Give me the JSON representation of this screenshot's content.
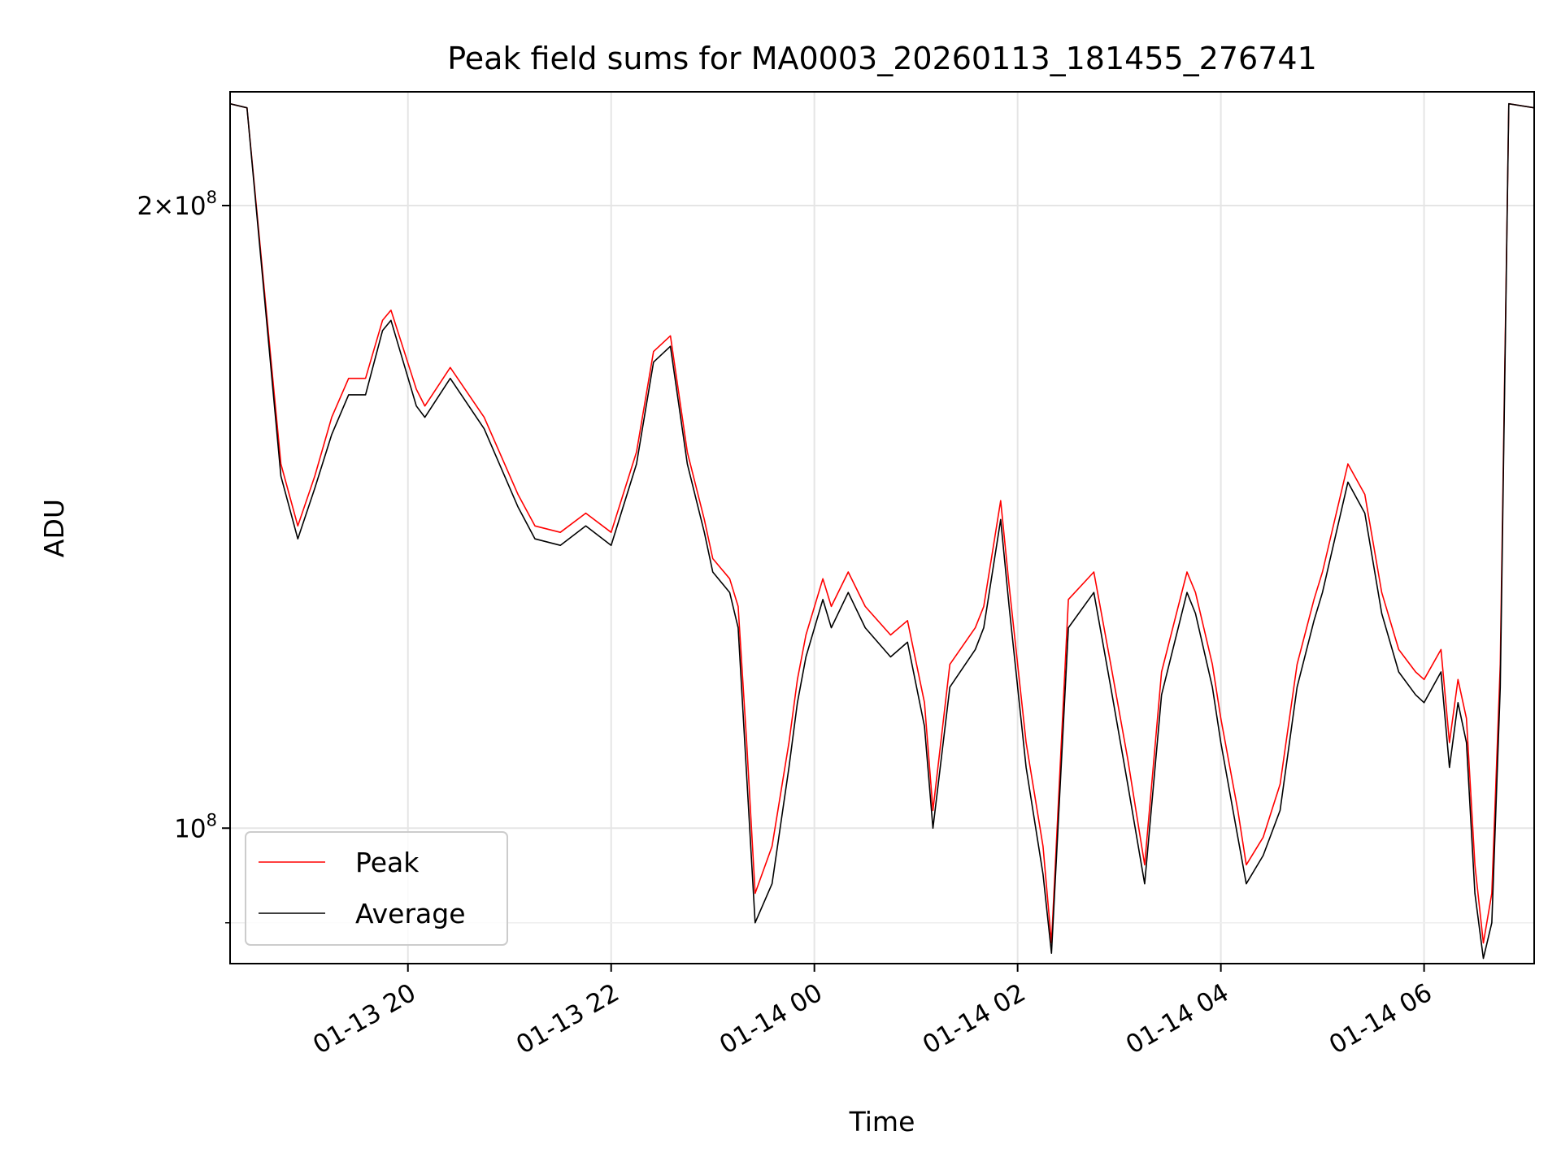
{
  "chart_data": {
    "type": "line",
    "title": "Peak field sums for MA0003_20260113_181455_276741",
    "xlabel": "Time",
    "ylabel": "ADU",
    "y_scale": "log",
    "grid": true,
    "legend_position": "lower-left",
    "xlim": [
      "2026-01-13 18:15",
      "2026-01-14 07:05"
    ],
    "ylim": [
      86000000,
      227000000
    ],
    "x_tick_labels": [
      "01-13 20",
      "01-13 22",
      "01-14 00",
      "01-14 02",
      "01-14 04",
      "01-14 06"
    ],
    "x_ticks": [
      "2026-01-13 20:00",
      "2026-01-13 22:00",
      "2026-01-14 00:00",
      "2026-01-14 02:00",
      "2026-01-14 04:00",
      "2026-01-14 06:00"
    ],
    "y_tick_labels": [
      {
        "value": 200000000,
        "base": "2×10",
        "exp": "8"
      },
      {
        "value": 100000000,
        "base": "10",
        "exp": "8"
      }
    ],
    "y_minor_ticks": [
      90000000
    ],
    "series": [
      {
        "name": "Peak",
        "color": "#ff0000",
        "x": [
          "2026-01-13 18:15",
          "2026-01-13 18:25",
          "2026-01-13 18:45",
          "2026-01-13 18:55",
          "2026-01-13 19:05",
          "2026-01-13 19:15",
          "2026-01-13 19:25",
          "2026-01-13 19:35",
          "2026-01-13 19:45",
          "2026-01-13 19:50",
          "2026-01-13 20:05",
          "2026-01-13 20:10",
          "2026-01-13 20:25",
          "2026-01-13 20:45",
          "2026-01-13 21:05",
          "2026-01-13 21:15",
          "2026-01-13 21:30",
          "2026-01-13 21:45",
          "2026-01-13 22:00",
          "2026-01-13 22:15",
          "2026-01-13 22:25",
          "2026-01-13 22:35",
          "2026-01-13 22:45",
          "2026-01-13 22:55",
          "2026-01-13 23:00",
          "2026-01-13 23:10",
          "2026-01-13 23:15",
          "2026-01-13 23:20",
          "2026-01-13 23:25",
          "2026-01-13 23:35",
          "2026-01-13 23:45",
          "2026-01-13 23:50",
          "2026-01-13 23:55",
          "2026-01-14 00:05",
          "2026-01-14 00:10",
          "2026-01-14 00:20",
          "2026-01-14 00:30",
          "2026-01-14 00:45",
          "2026-01-14 00:55",
          "2026-01-14 01:05",
          "2026-01-14 01:10",
          "2026-01-14 01:20",
          "2026-01-14 01:35",
          "2026-01-14 01:40",
          "2026-01-14 01:50",
          "2026-01-14 01:55",
          "2026-01-14 02:05",
          "2026-01-14 02:15",
          "2026-01-14 02:20",
          "2026-01-14 02:30",
          "2026-01-14 02:45",
          "2026-01-14 02:55",
          "2026-01-14 03:05",
          "2026-01-14 03:15",
          "2026-01-14 03:25",
          "2026-01-14 03:40",
          "2026-01-14 03:45",
          "2026-01-14 03:55",
          "2026-01-14 04:00",
          "2026-01-14 04:10",
          "2026-01-14 04:15",
          "2026-01-14 04:25",
          "2026-01-14 04:35",
          "2026-01-14 04:45",
          "2026-01-14 04:55",
          "2026-01-14 05:00",
          "2026-01-14 05:15",
          "2026-01-14 05:25",
          "2026-01-14 05:35",
          "2026-01-14 05:45",
          "2026-01-14 05:55",
          "2026-01-14 06:00",
          "2026-01-14 06:10",
          "2026-01-14 06:15",
          "2026-01-14 06:20",
          "2026-01-14 06:25",
          "2026-01-14 06:30",
          "2026-01-14 06:35",
          "2026-01-14 06:40",
          "2026-01-14 06:45",
          "2026-01-14 06:50",
          "2026-01-14 07:05"
        ],
        "y": [
          224000000,
          223000000,
          150000000,
          140000000,
          148000000,
          158000000,
          165000000,
          165000000,
          176000000,
          178000000,
          163000000,
          160000000,
          167000000,
          158000000,
          145000000,
          140000000,
          139000000,
          142000000,
          139000000,
          152000000,
          170000000,
          173000000,
          152000000,
          141000000,
          135000000,
          132000000,
          128000000,
          110000000,
          93000000,
          98000000,
          110000000,
          118000000,
          124000000,
          132000000,
          128000000,
          133000000,
          128000000,
          124000000,
          126000000,
          115000000,
          102000000,
          120000000,
          125000000,
          128000000,
          144000000,
          131000000,
          110000000,
          98000000,
          88000000,
          129000000,
          133000000,
          120000000,
          108000000,
          96000000,
          119000000,
          133000000,
          130000000,
          120000000,
          113000000,
          102000000,
          96000000,
          99000000,
          105000000,
          120000000,
          129000000,
          133000000,
          150000000,
          145000000,
          130000000,
          122000000,
          119000000,
          118000000,
          122000000,
          110000000,
          118000000,
          113000000,
          96000000,
          88000000,
          93000000,
          120000000,
          224000000,
          223000000
        ]
      },
      {
        "name": "Average",
        "color": "#000000",
        "x": [
          "2026-01-13 18:15",
          "2026-01-13 18:25",
          "2026-01-13 18:45",
          "2026-01-13 18:55",
          "2026-01-13 19:05",
          "2026-01-13 19:15",
          "2026-01-13 19:25",
          "2026-01-13 19:35",
          "2026-01-13 19:45",
          "2026-01-13 19:50",
          "2026-01-13 20:05",
          "2026-01-13 20:10",
          "2026-01-13 20:25",
          "2026-01-13 20:45",
          "2026-01-13 21:05",
          "2026-01-13 21:15",
          "2026-01-13 21:30",
          "2026-01-13 21:45",
          "2026-01-13 22:00",
          "2026-01-13 22:15",
          "2026-01-13 22:25",
          "2026-01-13 22:35",
          "2026-01-13 22:45",
          "2026-01-13 22:55",
          "2026-01-13 23:00",
          "2026-01-13 23:10",
          "2026-01-13 23:15",
          "2026-01-13 23:20",
          "2026-01-13 23:25",
          "2026-01-13 23:35",
          "2026-01-13 23:45",
          "2026-01-13 23:50",
          "2026-01-13 23:55",
          "2026-01-14 00:05",
          "2026-01-14 00:10",
          "2026-01-14 00:20",
          "2026-01-14 00:30",
          "2026-01-14 00:45",
          "2026-01-14 00:55",
          "2026-01-14 01:05",
          "2026-01-14 01:10",
          "2026-01-14 01:20",
          "2026-01-14 01:35",
          "2026-01-14 01:40",
          "2026-01-14 01:50",
          "2026-01-14 01:55",
          "2026-01-14 02:05",
          "2026-01-14 02:15",
          "2026-01-14 02:20",
          "2026-01-14 02:30",
          "2026-01-14 02:45",
          "2026-01-14 02:55",
          "2026-01-14 03:05",
          "2026-01-14 03:15",
          "2026-01-14 03:25",
          "2026-01-14 03:40",
          "2026-01-14 03:45",
          "2026-01-14 03:55",
          "2026-01-14 04:00",
          "2026-01-14 04:10",
          "2026-01-14 04:15",
          "2026-01-14 04:25",
          "2026-01-14 04:35",
          "2026-01-14 04:45",
          "2026-01-14 04:55",
          "2026-01-14 05:00",
          "2026-01-14 05:15",
          "2026-01-14 05:25",
          "2026-01-14 05:35",
          "2026-01-14 05:45",
          "2026-01-14 05:55",
          "2026-01-14 06:00",
          "2026-01-14 06:10",
          "2026-01-14 06:15",
          "2026-01-14 06:20",
          "2026-01-14 06:25",
          "2026-01-14 06:30",
          "2026-01-14 06:35",
          "2026-01-14 06:40",
          "2026-01-14 06:45",
          "2026-01-14 06:50",
          "2026-01-14 07:05"
        ],
        "y": [
          224000000,
          223000000,
          148000000,
          138000000,
          146000000,
          155000000,
          162000000,
          162000000,
          174000000,
          176000000,
          160000000,
          158000000,
          165000000,
          156000000,
          143000000,
          138000000,
          137000000,
          140000000,
          137000000,
          150000000,
          168000000,
          171000000,
          150000000,
          139000000,
          133000000,
          130000000,
          125000000,
          106000000,
          90000000,
          94000000,
          107000000,
          115000000,
          121000000,
          129000000,
          125000000,
          130000000,
          125000000,
          121000000,
          123000000,
          112000000,
          100000000,
          117000000,
          122000000,
          125000000,
          141000000,
          128000000,
          107000000,
          95000000,
          87000000,
          125000000,
          130000000,
          117000000,
          105000000,
          94000000,
          116000000,
          130000000,
          127000000,
          117000000,
          110000000,
          99000000,
          94000000,
          97000000,
          102000000,
          117000000,
          126000000,
          130000000,
          147000000,
          142000000,
          127000000,
          119000000,
          116000000,
          115000000,
          119000000,
          107000000,
          115000000,
          110000000,
          93000000,
          86500000,
          90000000,
          117000000,
          224000000,
          223000000
        ]
      }
    ]
  }
}
